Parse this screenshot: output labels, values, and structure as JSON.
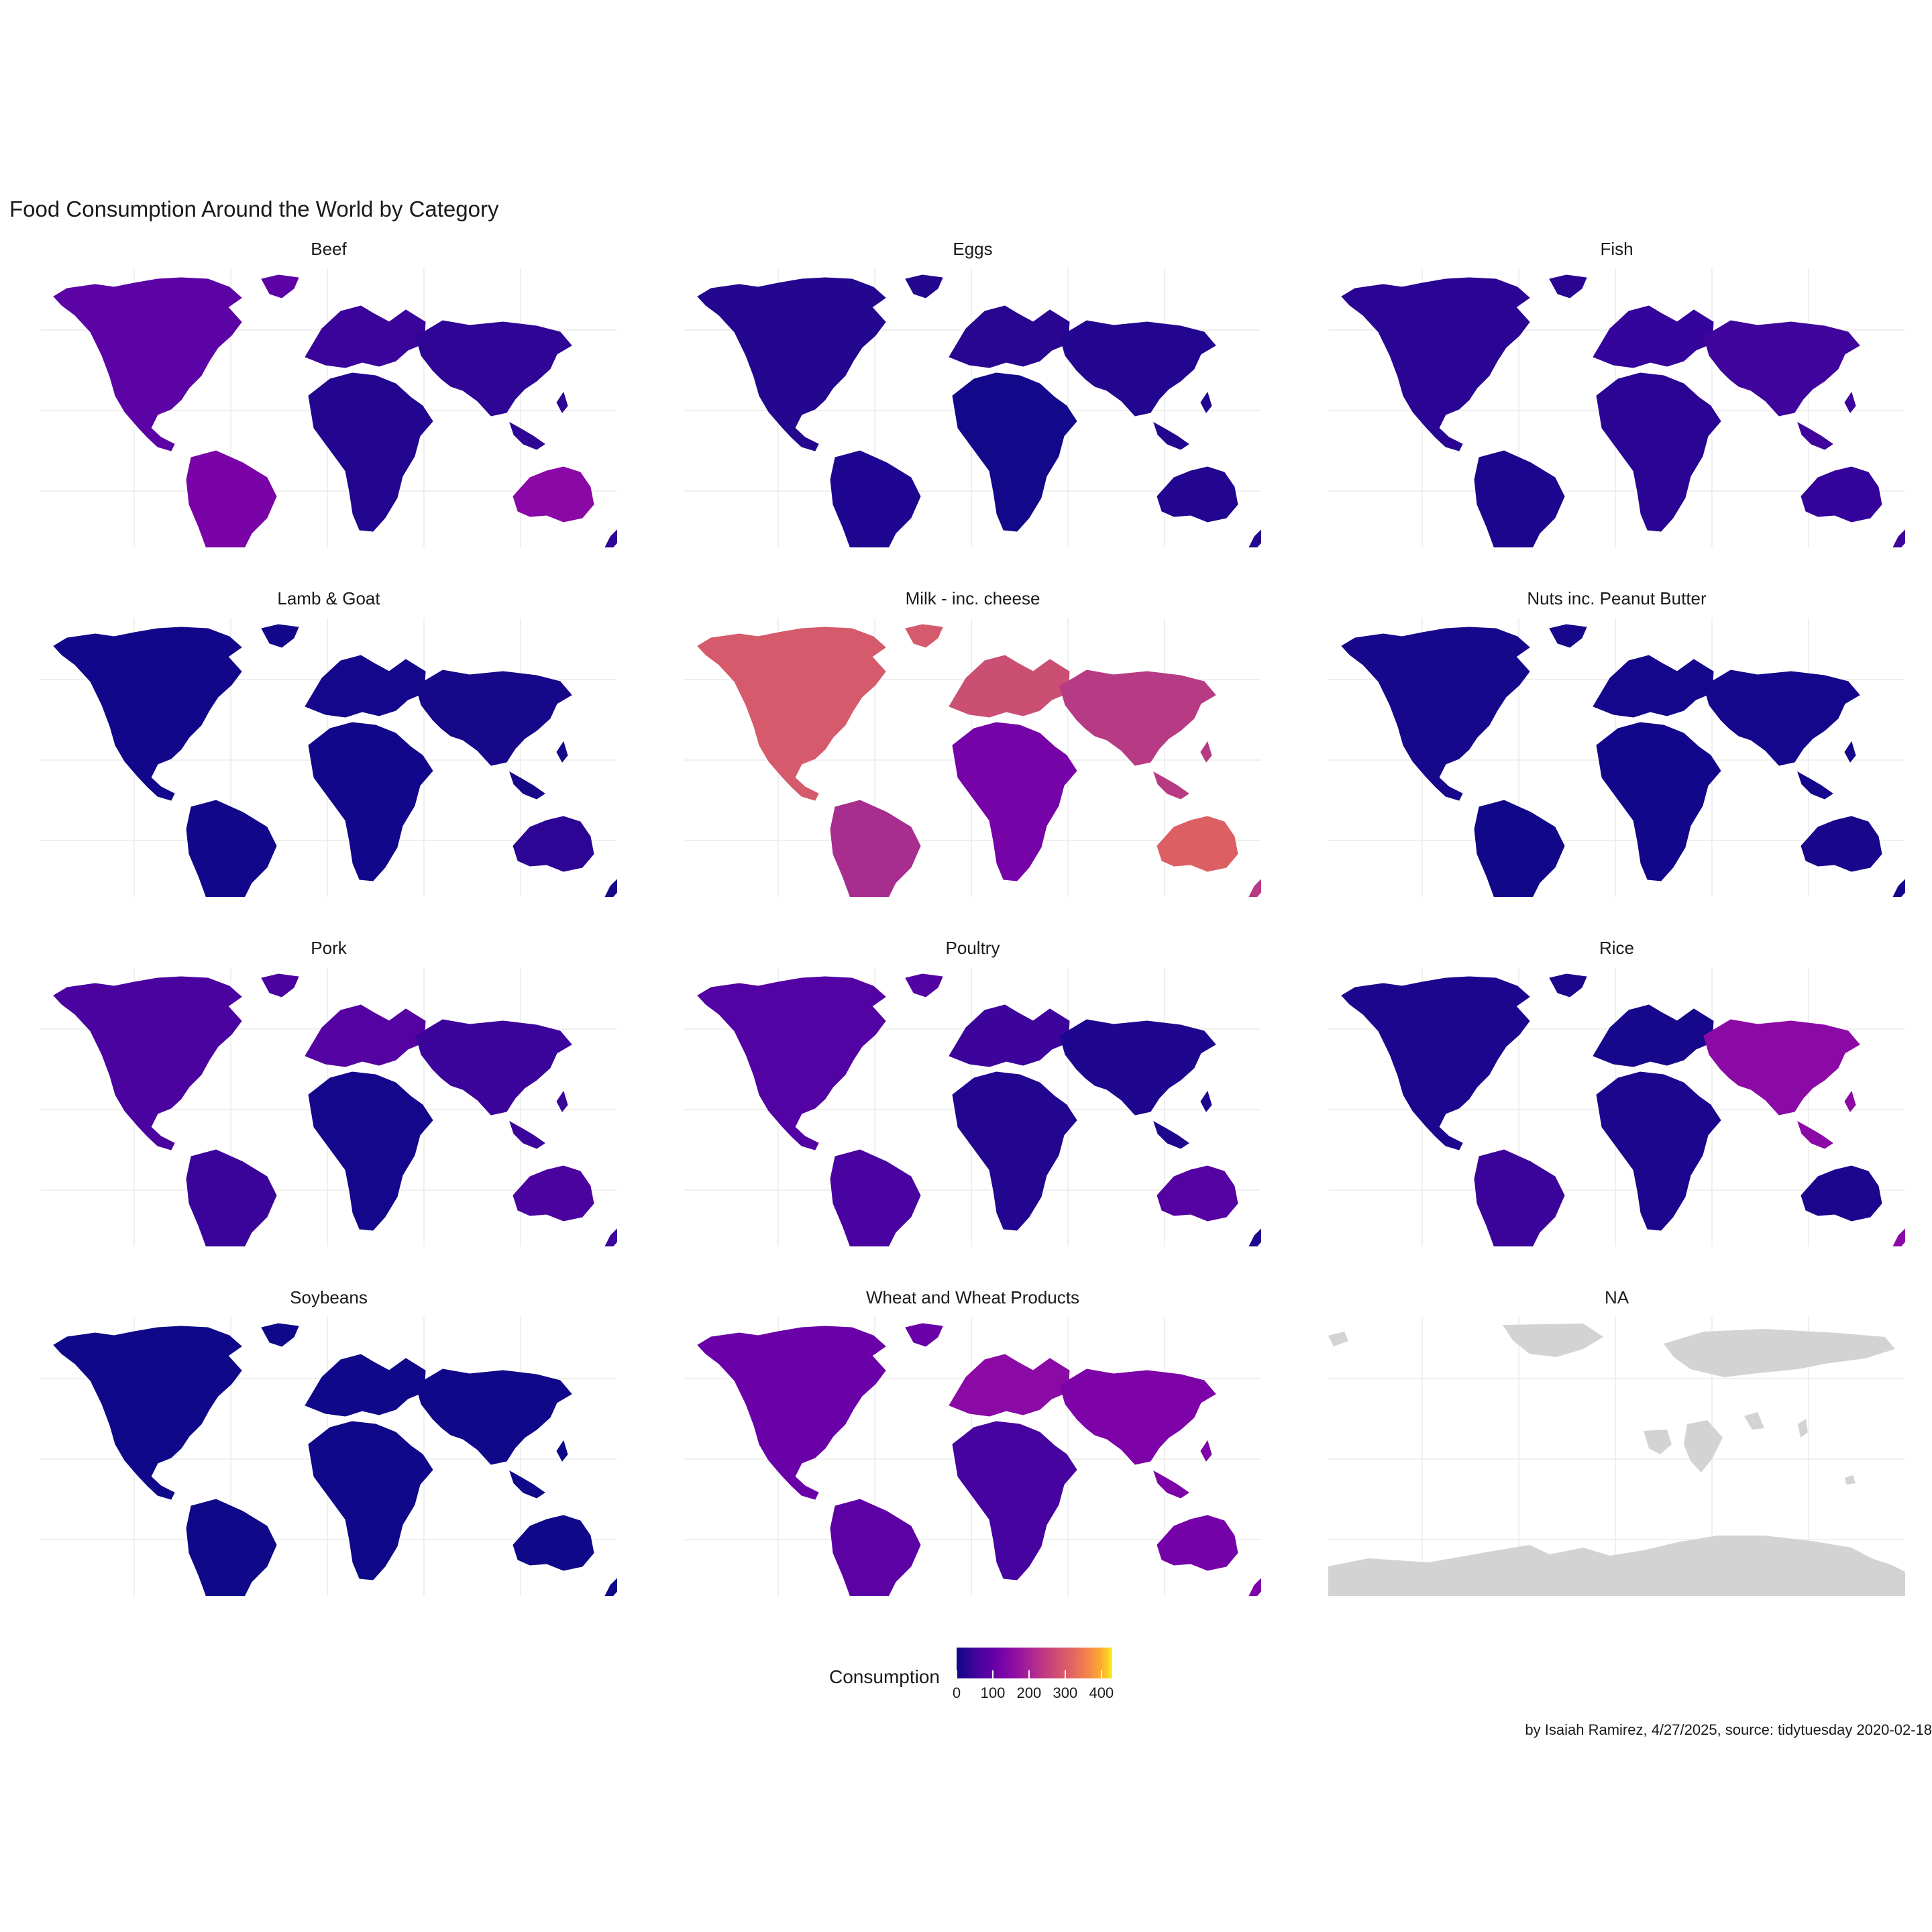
{
  "title": "Food Consumption Around the World by Category",
  "caption": "by Isaiah Ramirez, 4/27/2025, source: tidytuesday 2020-02-18",
  "panels": [
    {
      "label": "Beef",
      "colors": {
        "north_america": "#5c03a6",
        "south_america": "#7a03a8",
        "europe": "#3a049a",
        "africa": "#22068f",
        "asia": "#2e0595",
        "oceania": "#8a09a6"
      }
    },
    {
      "label": "Eggs",
      "colors": {
        "north_america": "#24078f",
        "south_america": "#1e0690",
        "europe": "#28068f",
        "africa": "#130889",
        "asia": "#23068f",
        "oceania": "#22068f"
      }
    },
    {
      "label": "Fish",
      "colors": {
        "north_america": "#2a0593",
        "south_america": "#1b068d",
        "europe": "#35049a",
        "africa": "#2a0593",
        "asia": "#3e049c",
        "oceania": "#34049a"
      }
    },
    {
      "label": "Lamb & Goat",
      "colors": {
        "north_america": "#12078a",
        "south_america": "#12078a",
        "europe": "#14078b",
        "africa": "#12078a",
        "asia": "#170789",
        "oceania": "#2c0594"
      }
    },
    {
      "label": "Milk - inc. cheese",
      "colors": {
        "north_america": "#d55a6b",
        "south_america": "#a72d8f",
        "europe": "#ca4f73",
        "africa": "#7503a8",
        "asia": "#b73a84",
        "oceania": "#dc5f64"
      }
    },
    {
      "label": "Nuts inc. Peanut Butter",
      "colors": {
        "north_america": "#16078b",
        "south_america": "#110789",
        "europe": "#14078b",
        "africa": "#12078a",
        "asia": "#14078b",
        "oceania": "#18078b"
      }
    },
    {
      "label": "Pork",
      "colors": {
        "north_america": "#4b03a0",
        "south_america": "#3a049a",
        "europe": "#5502a3",
        "africa": "#14078b",
        "asia": "#3b049b",
        "oceania": "#4b03a0"
      }
    },
    {
      "label": "Poultry",
      "colors": {
        "north_america": "#5302a3",
        "south_america": "#4903a0",
        "europe": "#3c049b",
        "africa": "#22068f",
        "asia": "#1f068f",
        "oceania": "#5602a3"
      }
    },
    {
      "label": "Rice",
      "colors": {
        "north_america": "#1c068e",
        "south_america": "#3a049a",
        "europe": "#16078b",
        "africa": "#1b068d",
        "asia": "#8b0aa5",
        "oceania": "#1c068e"
      }
    },
    {
      "label": "Soybeans",
      "colors": {
        "north_america": "#0f0888",
        "south_america": "#0f0888",
        "europe": "#0f0888",
        "africa": "#0f0888",
        "asia": "#0f0888",
        "oceania": "#0f0888"
      }
    },
    {
      "label": "Wheat and Wheat Products",
      "colors": {
        "north_america": "#6a00a8",
        "south_america": "#5c02a4",
        "europe": "#8b0aa5",
        "africa": "#4603a0",
        "asia": "#7d03a8",
        "oceania": "#7402a8"
      }
    },
    {
      "label": "NA",
      "colors": {
        "north_america": "#d3d3d3",
        "south_america": "#d3d3d3",
        "europe": "#d3d3d3",
        "africa": "#d3d3d3",
        "asia": "#d3d3d3",
        "oceania": "#d3d3d3"
      }
    }
  ],
  "legend": {
    "title": "Consumption",
    "scale": "plasma",
    "min": 0,
    "max": 430,
    "ticks": [
      {
        "value": 0,
        "label": "0"
      },
      {
        "value": 100,
        "label": "100"
      },
      {
        "value": 200,
        "label": "200"
      },
      {
        "value": 300,
        "label": "300"
      },
      {
        "value": 400,
        "label": "400"
      }
    ]
  }
}
